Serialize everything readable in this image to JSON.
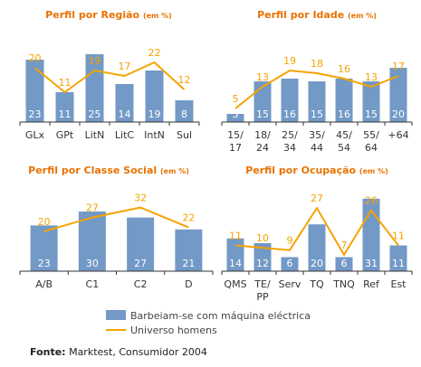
{
  "chart_data": [
    {
      "type": "bar",
      "title": "Perfil por Região",
      "title_unit": "(em %)",
      "categories": [
        "GLx",
        "GPt",
        "LitN",
        "LitC",
        "IntN",
        "Sul"
      ],
      "series": [
        {
          "name": "Barbeiam-se com máquina eléctrica",
          "type": "bar",
          "values": [
            23,
            11,
            25,
            14,
            19,
            8
          ]
        },
        {
          "name": "Universo homens",
          "type": "line",
          "values": [
            20,
            11,
            19,
            17,
            22,
            12
          ]
        }
      ],
      "ylim": [
        0,
        30
      ]
    },
    {
      "type": "bar",
      "title": "Perfil por Idade",
      "title_unit": "(em %)",
      "categories": [
        "15/\n17",
        "18/\n24",
        "25/\n34",
        "35/\n44",
        "45/\n54",
        "55/\n64",
        "+64"
      ],
      "series": [
        {
          "name": "Barbeiam-se com máquina eléctrica",
          "type": "bar",
          "values": [
            3,
            15,
            16,
            15,
            16,
            15,
            20
          ]
        },
        {
          "name": "Universo homens",
          "type": "line",
          "values": [
            5,
            13,
            19,
            18,
            16,
            13,
            17
          ]
        }
      ],
      "ylim": [
        0,
        30
      ]
    },
    {
      "type": "bar",
      "title": "Perfil por Classe Social",
      "title_unit": "(em %)",
      "categories": [
        "A/B",
        "C1",
        "C2",
        "D"
      ],
      "series": [
        {
          "name": "Barbeiam-se com máquina eléctrica",
          "type": "bar",
          "values": [
            23,
            30,
            27,
            21
          ]
        },
        {
          "name": "Universo homens",
          "type": "line",
          "values": [
            20,
            27,
            32,
            22
          ]
        }
      ],
      "ylim": [
        0,
        40
      ]
    },
    {
      "type": "bar",
      "title": "Perfil por Ocupação",
      "title_unit": "(em %)",
      "categories": [
        "QMS",
        "TE/\nPP",
        "Serv",
        "TQ",
        "TNQ",
        "Ref",
        "Est"
      ],
      "series": [
        {
          "name": "Barbeiam-se com máquina eléctrica",
          "type": "bar",
          "values": [
            14,
            12,
            6,
            20,
            6,
            31,
            11
          ]
        },
        {
          "name": "Universo homens",
          "type": "line",
          "values": [
            11,
            10,
            9,
            27,
            7,
            26,
            11
          ]
        }
      ],
      "ylim": [
        0,
        34
      ]
    }
  ],
  "legend": {
    "bar_label": "Barbeiam-se com máquina eléctrica",
    "line_label": "Universo homens"
  },
  "source": {
    "label": "Fonte:",
    "text": " Marktest, Consumidor 2004"
  },
  "colors": {
    "bar": "#7399c6",
    "line": "#f5a300",
    "title": "#e87200",
    "bar_label": "#ffffff",
    "line_label": "#f5a300"
  }
}
